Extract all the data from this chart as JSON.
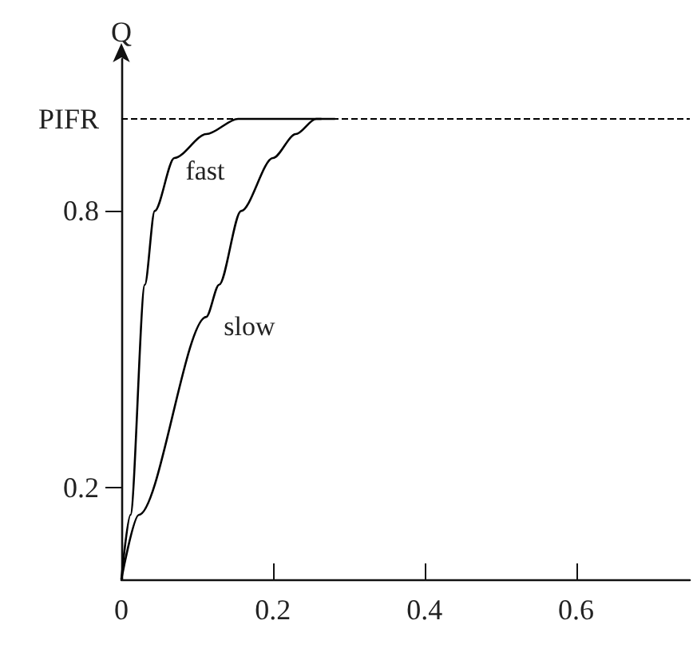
{
  "chart_data": {
    "type": "line",
    "ylabel": "Q",
    "xlim": [
      0,
      0.75
    ],
    "xticks": [
      0,
      0.2,
      0.4,
      0.6
    ],
    "ylim": [
      0,
      1.13
    ],
    "yticks": [
      0.2,
      0.8,
      {
        "value": 1,
        "label": "PIFR"
      }
    ],
    "grid": false,
    "legend": false,
    "marker": "none",
    "line_style": "solid",
    "ref_lines": [
      {
        "axis": "y",
        "value": 1,
        "label": null,
        "color": "#000000",
        "line_style": "dashed"
      }
    ],
    "series": [
      {
        "name": "fast",
        "color": "#000000",
        "x": [
          0,
          0.012,
          0.031,
          0.044,
          0.07,
          0.112,
          0.154,
          0.19,
          0.264
        ],
        "values": [
          0,
          0.14,
          0.64,
          0.8,
          0.915,
          0.967,
          1.0,
          1.0,
          1.0
        ]
      },
      {
        "name": "slow",
        "color": "#000000",
        "x": [
          0,
          0.023,
          0.112,
          0.129,
          0.158,
          0.2,
          0.23,
          0.257,
          0.282
        ],
        "values": [
          0,
          0.14,
          0.57,
          0.64,
          0.8,
          0.915,
          0.967,
          1.0,
          1.0
        ]
      }
    ]
  }
}
